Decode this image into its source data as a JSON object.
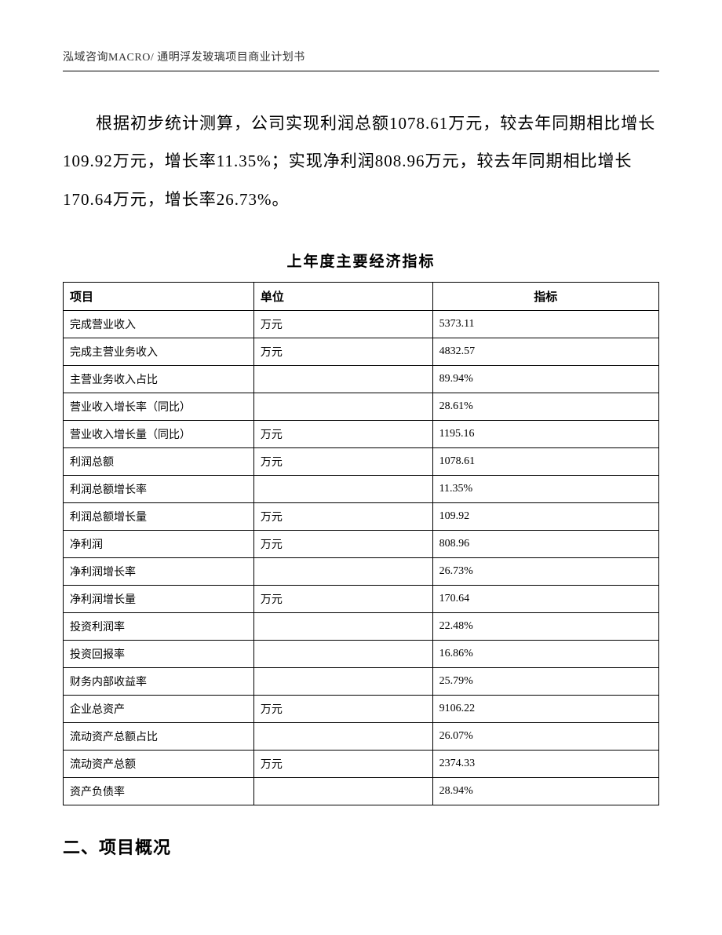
{
  "header": {
    "text": "泓域咨询MACRO/ 通明浮发玻璃项目商业计划书"
  },
  "paragraph": {
    "text": "根据初步统计测算，公司实现利润总额1078.61万元，较去年同期相比增长109.92万元，增长率11.35%；实现净利润808.96万元，较去年同期相比增长170.64万元，增长率26.73%。"
  },
  "table": {
    "title": "上年度主要经济指标",
    "columns": [
      "项目",
      "单位",
      "指标"
    ],
    "rows": [
      [
        "完成营业收入",
        "万元",
        "5373.11"
      ],
      [
        "完成主营业务收入",
        "万元",
        "4832.57"
      ],
      [
        "主营业务收入占比",
        "",
        "89.94%"
      ],
      [
        "营业收入增长率（同比）",
        "",
        "28.61%"
      ],
      [
        "营业收入增长量（同比）",
        "万元",
        "1195.16"
      ],
      [
        "利润总额",
        "万元",
        "1078.61"
      ],
      [
        "利润总额增长率",
        "",
        "11.35%"
      ],
      [
        "利润总额增长量",
        "万元",
        "109.92"
      ],
      [
        "净利润",
        "万元",
        "808.96"
      ],
      [
        "净利润增长率",
        "",
        "26.73%"
      ],
      [
        "净利润增长量",
        "万元",
        "170.64"
      ],
      [
        "投资利润率",
        "",
        "22.48%"
      ],
      [
        "投资回报率",
        "",
        "16.86%"
      ],
      [
        "财务内部收益率",
        "",
        "25.79%"
      ],
      [
        "企业总资产",
        "万元",
        "9106.22"
      ],
      [
        "流动资产总额占比",
        "",
        "26.07%"
      ],
      [
        "流动资产总额",
        "万元",
        "2374.33"
      ],
      [
        "资产负债率",
        "",
        "28.94%"
      ]
    ]
  },
  "section": {
    "heading": "二、项目概况"
  },
  "style": {
    "page_bg": "#ffffff",
    "text_color": "#000000",
    "border_color": "#000000",
    "body_fontsize": 21,
    "table_fontsize": 14,
    "title_fontsize": 19,
    "heading_fontsize": 22
  }
}
